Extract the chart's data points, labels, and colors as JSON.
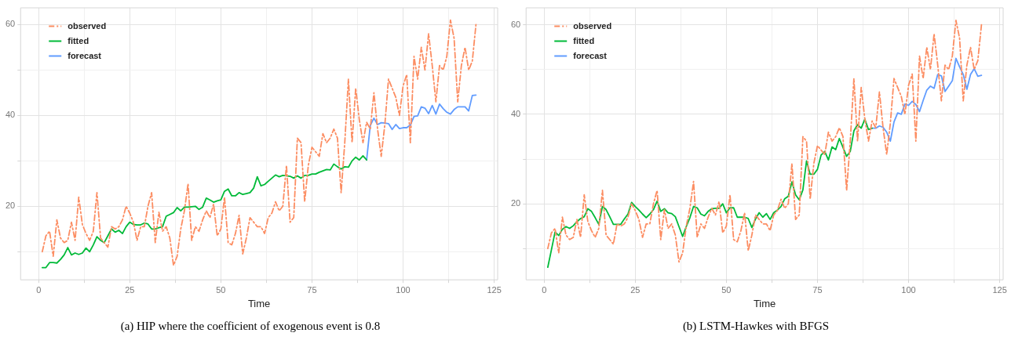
{
  "chart_data": [
    {
      "type": "line",
      "title": "(a) HIP where the coefficient of exogenous event is 0.8",
      "xlabel": "Time",
      "legend": "top left",
      "grid": true,
      "xlim": [
        -4.95,
        125.95
      ],
      "xticks": [
        0,
        {
          "value": 12.5,
          "label": null
        },
        25,
        {
          "value": 37.5,
          "label": null
        },
        50,
        {
          "value": 62.5,
          "label": null
        },
        75,
        {
          "value": 87.5,
          "label": null
        },
        100,
        {
          "value": 112.5,
          "label": null
        },
        125
      ],
      "ylim": [
        3.8,
        63.7
      ],
      "yticks": [
        {
          "value": 10,
          "label": null
        },
        20,
        {
          "value": 30,
          "label": null
        },
        40,
        {
          "value": 50,
          "label": null
        },
        60
      ],
      "x": [
        1,
        2,
        3,
        4,
        5,
        6,
        7,
        8,
        9,
        10,
        11,
        12,
        13,
        14,
        15,
        16,
        17,
        18,
        19,
        20,
        21,
        22,
        23,
        24,
        25,
        26,
        27,
        28,
        29,
        30,
        31,
        32,
        33,
        34,
        35,
        36,
        37,
        38,
        39,
        40,
        41,
        42,
        43,
        44,
        45,
        46,
        47,
        48,
        49,
        50,
        51,
        52,
        53,
        54,
        55,
        56,
        57,
        58,
        59,
        60,
        61,
        62,
        63,
        64,
        65,
        66,
        67,
        68,
        69,
        70,
        71,
        72,
        73,
        74,
        75,
        76,
        77,
        78,
        79,
        80,
        81,
        82,
        83,
        84,
        85,
        86,
        87,
        88,
        89,
        90,
        91,
        92,
        93,
        94,
        95,
        96,
        97,
        98,
        99,
        100,
        101,
        102,
        103,
        104,
        105,
        106,
        107,
        108,
        109,
        110,
        111,
        112,
        113,
        114,
        115,
        116,
        117,
        118,
        119,
        120
      ],
      "series": [
        {
          "name": "observed",
          "color": "#fc8d62",
          "line_style": "dashed",
          "values": [
            10,
            13.5,
            14.5,
            9,
            17,
            13,
            12,
            12.5,
            16.5,
            12.5,
            22,
            16,
            14,
            12.5,
            14.5,
            23,
            13,
            12,
            11,
            15.5,
            15,
            15.5,
            17,
            20,
            18.5,
            16.5,
            12.5,
            15.5,
            15.5,
            20,
            23,
            12,
            18.7,
            14.5,
            15.5,
            13,
            7,
            9,
            15,
            19,
            25,
            12.5,
            15.5,
            14.5,
            17,
            19,
            17.5,
            20.5,
            13.5,
            15,
            22,
            12,
            11.5,
            14,
            18,
            9.5,
            13,
            17.5,
            16.5,
            15.5,
            15.5,
            14,
            17.5,
            18.5,
            21,
            19,
            20,
            29,
            16.5,
            17.5,
            35,
            34,
            21,
            29,
            33,
            32,
            31,
            36,
            34,
            35,
            37,
            35,
            23,
            34,
            48,
            34,
            46,
            39,
            34,
            38.5,
            37,
            45,
            37,
            31,
            38,
            48,
            46,
            44,
            40,
            46.5,
            49,
            34,
            53,
            48,
            55,
            50,
            58,
            51,
            43,
            51,
            50,
            53,
            61,
            57,
            43,
            51,
            55,
            50,
            52,
            60
          ]
        },
        {
          "name": "fitted",
          "color": "#00ba38",
          "line_style": "solid",
          "x": [
            1,
            2,
            3,
            4,
            5,
            6,
            7,
            8,
            9,
            10,
            11,
            12,
            13,
            14,
            15,
            16,
            17,
            18,
            19,
            20,
            21,
            22,
            23,
            24,
            25,
            26,
            27,
            28,
            29,
            30,
            31,
            32,
            33,
            34,
            35,
            36,
            37,
            38,
            39,
            40,
            41,
            42,
            43,
            44,
            45,
            46,
            47,
            48,
            49,
            50,
            51,
            52,
            53,
            54,
            55,
            56,
            57,
            58,
            59,
            60,
            61,
            62,
            63,
            64,
            65,
            66,
            67,
            68,
            69,
            70,
            71,
            72,
            73,
            74,
            75,
            76,
            77,
            78,
            79,
            80,
            81,
            82,
            83,
            84,
            85,
            86,
            87,
            88,
            89,
            90
          ],
          "values": [
            6.5,
            6.5,
            7.6,
            7.6,
            7.5,
            8.3,
            9.3,
            10.9,
            9.3,
            9.7,
            9.4,
            9.7,
            10.8,
            10,
            11.5,
            13.3,
            12.5,
            12,
            13.5,
            15,
            14.3,
            14.7,
            14,
            15.5,
            16.5,
            16,
            15.9,
            15.9,
            16.3,
            16.1,
            15,
            15,
            15.3,
            15.5,
            17.8,
            18.2,
            18.6,
            19.7,
            19,
            19.8,
            19.8,
            19.9,
            20,
            19.3,
            19.8,
            21.8,
            21.4,
            20.9,
            21.2,
            21.4,
            23.3,
            23.8,
            22.3,
            22.3,
            23,
            22.6,
            22.8,
            23,
            24,
            26.5,
            24.5,
            24.8,
            25.5,
            26.2,
            26.9,
            26.5,
            26.8,
            26.7,
            26.6,
            26.2,
            26.7,
            26.2,
            26.8,
            26.8,
            27.1,
            27.1,
            27.5,
            27.8,
            28.1,
            28,
            29.3,
            28.7,
            28.2,
            28.7,
            28.6,
            30,
            30.8,
            30.2,
            31.1,
            30.2
          ]
        },
        {
          "name": "forecast",
          "color": "#619cff",
          "line_style": "solid",
          "x": [
            90,
            91,
            92,
            93,
            94,
            95,
            96,
            97,
            98,
            99,
            100,
            101,
            102,
            103,
            104,
            105,
            106,
            107,
            108,
            109,
            110,
            111,
            112,
            113,
            114,
            115,
            116,
            117,
            118,
            119,
            120
          ],
          "values": [
            30.2,
            37.8,
            39.4,
            38,
            38.4,
            38.3,
            38.2,
            36.9,
            38,
            37.1,
            37.3,
            37.3,
            37.9,
            39.8,
            39.9,
            41.9,
            41.6,
            40.4,
            42.2,
            40.3,
            42.5,
            41.5,
            40.7,
            40.3,
            41.3,
            41.9,
            41.9,
            41.9,
            41,
            44.4,
            44.5
          ]
        }
      ]
    },
    {
      "type": "line",
      "title": "(b) LSTM-Hawkes with BFGS",
      "xlabel": "Time",
      "legend": "top left",
      "grid": true,
      "xlim": [
        -4.95,
        125.95
      ],
      "xticks": [
        0,
        {
          "value": 12.5,
          "label": null
        },
        25,
        {
          "value": 37.5,
          "label": null
        },
        50,
        {
          "value": 62.5,
          "label": null
        },
        75,
        {
          "value": 87.5,
          "label": null
        },
        100,
        {
          "value": 112.5,
          "label": null
        },
        125
      ],
      "ylim": [
        3,
        63.8
      ],
      "yticks": [
        {
          "value": 10,
          "label": null
        },
        20,
        {
          "value": 30,
          "label": null
        },
        40,
        {
          "value": 50,
          "label": null
        },
        60
      ],
      "x": [
        1,
        2,
        3,
        4,
        5,
        6,
        7,
        8,
        9,
        10,
        11,
        12,
        13,
        14,
        15,
        16,
        17,
        18,
        19,
        20,
        21,
        22,
        23,
        24,
        25,
        26,
        27,
        28,
        29,
        30,
        31,
        32,
        33,
        34,
        35,
        36,
        37,
        38,
        39,
        40,
        41,
        42,
        43,
        44,
        45,
        46,
        47,
        48,
        49,
        50,
        51,
        52,
        53,
        54,
        55,
        56,
        57,
        58,
        59,
        60,
        61,
        62,
        63,
        64,
        65,
        66,
        67,
        68,
        69,
        70,
        71,
        72,
        73,
        74,
        75,
        76,
        77,
        78,
        79,
        80,
        81,
        82,
        83,
        84,
        85,
        86,
        87,
        88,
        89,
        90,
        91,
        92,
        93,
        94,
        95,
        96,
        97,
        98,
        99,
        100,
        101,
        102,
        103,
        104,
        105,
        106,
        107,
        108,
        109,
        110,
        111,
        112,
        113,
        114,
        115,
        116,
        117,
        118,
        119,
        120
      ],
      "series": [
        {
          "name": "observed",
          "color": "#fc8d62",
          "line_style": "dashed",
          "values": [
            10,
            13.5,
            14.5,
            9,
            17,
            13,
            12,
            12.5,
            16.5,
            12.5,
            22,
            16,
            14,
            12.5,
            14.5,
            23,
            13,
            12,
            11,
            15.5,
            15,
            15.5,
            17,
            20,
            18.5,
            16.5,
            12.5,
            15.5,
            15.5,
            20,
            23,
            12,
            18.7,
            14.5,
            15.5,
            13,
            7,
            9,
            15,
            19,
            25,
            12.5,
            15.5,
            14.5,
            17,
            19,
            17.5,
            20.5,
            13.5,
            15,
            22,
            12,
            11.5,
            14,
            18,
            9.5,
            13,
            17.5,
            16.5,
            15.5,
            15.5,
            14,
            17.5,
            18.5,
            21,
            19,
            20,
            29,
            16.5,
            17.5,
            35,
            34,
            21,
            29,
            33,
            32,
            31,
            36,
            34,
            35,
            37,
            35,
            23,
            34,
            48,
            34,
            46,
            39,
            34,
            38.5,
            37,
            45,
            37,
            31,
            38,
            48,
            46,
            44,
            40,
            46.5,
            49,
            34,
            53,
            48,
            55,
            50,
            58,
            51,
            43,
            51,
            50,
            53,
            61,
            57,
            43,
            51,
            55,
            50,
            52,
            60
          ]
        },
        {
          "name": "fitted",
          "color": "#00ba38",
          "line_style": "solid",
          "x": [
            1,
            2,
            3,
            4,
            5,
            6,
            7,
            8,
            9,
            10,
            11,
            12,
            13,
            14,
            15,
            16,
            17,
            18,
            19,
            20,
            21,
            22,
            23,
            24,
            25,
            26,
            27,
            28,
            29,
            30,
            31,
            32,
            33,
            34,
            35,
            36,
            37,
            38,
            39,
            40,
            41,
            42,
            43,
            44,
            45,
            46,
            47,
            48,
            49,
            50,
            51,
            52,
            53,
            54,
            55,
            56,
            57,
            58,
            59,
            60,
            61,
            62,
            63,
            64,
            65,
            66,
            67,
            68,
            69,
            70,
            71,
            72,
            73,
            74,
            75,
            76,
            77,
            78,
            79,
            80,
            81,
            82,
            83,
            84,
            85,
            86,
            87,
            88,
            89,
            90
          ],
          "values": [
            5.8,
            9.7,
            13.7,
            12.9,
            14.3,
            14.9,
            14.5,
            15.1,
            16,
            16.7,
            17.1,
            18.9,
            18.3,
            16.9,
            15.4,
            19.4,
            18.7,
            17.1,
            15.4,
            15.4,
            15.4,
            16.6,
            17.7,
            20.3,
            19.4,
            18.6,
            17.7,
            16.9,
            17.7,
            18.7,
            20.6,
            18.3,
            18.9,
            18,
            17.8,
            17.1,
            14.9,
            12.7,
            14.9,
            16.9,
            19.4,
            19.1,
            17.7,
            17.3,
            18.3,
            18.9,
            19,
            19,
            20,
            18,
            19.1,
            19.1,
            17,
            17,
            17,
            16.7,
            14.7,
            16.6,
            18,
            17,
            17.8,
            16.5,
            18,
            18.6,
            19.4,
            21.1,
            21.7,
            24.9,
            22,
            20.9,
            23.1,
            29.6,
            26.6,
            26.6,
            27.7,
            30.9,
            31.7,
            29.8,
            32.7,
            32.1,
            34.6,
            32.6,
            30.6,
            31.7,
            36.3,
            37.7,
            36.9,
            38.9,
            36.6,
            36.9
          ]
        },
        {
          "name": "forecast",
          "color": "#619cff",
          "line_style": "solid",
          "x": [
            90,
            91,
            92,
            93,
            94,
            95,
            96,
            97,
            98,
            99,
            100,
            101,
            102,
            103,
            104,
            105,
            106,
            107,
            108,
            109,
            110,
            111,
            112,
            113,
            114,
            115,
            116,
            117,
            118,
            119,
            120
          ],
          "values": [
            36.9,
            36.9,
            37.4,
            37.1,
            36,
            34,
            38.3,
            40.3,
            40,
            42.3,
            42,
            42.9,
            42.2,
            40.6,
            43.1,
            45.4,
            46.3,
            45.8,
            48.9,
            48.6,
            45.1,
            46.3,
            47.5,
            52.5,
            50.6,
            48.9,
            45.6,
            48.9,
            50.2,
            48.5,
            48.7
          ]
        }
      ]
    }
  ]
}
